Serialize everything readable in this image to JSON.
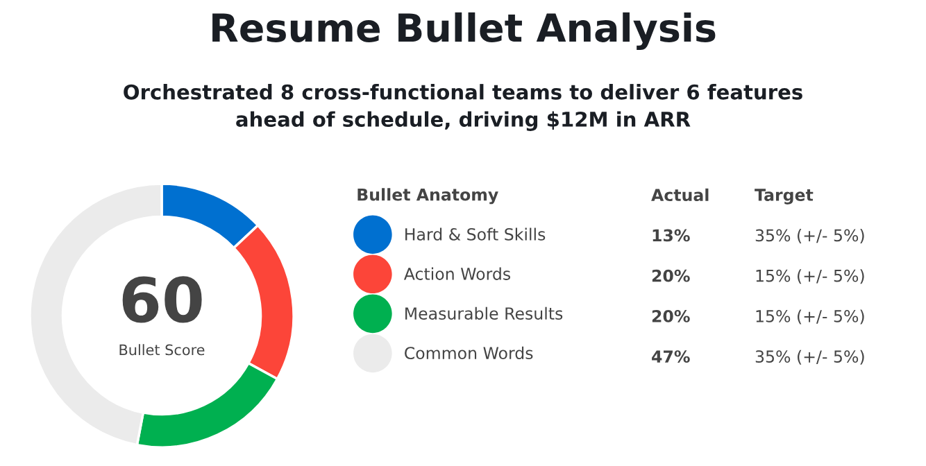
{
  "chart_data": {
    "type": "donut",
    "title": "Resume Bullet Analysis",
    "subtitle": "Orchestrated 8 cross-functional teams to deliver 6 features\nahead of schedule, driving $12M in ARR",
    "legend_title": "Bullet Anatomy",
    "categories": [
      "Hard & Soft Skills",
      "Action Words",
      "Measurable Results",
      "Common Words"
    ],
    "values": [
      13,
      20,
      20,
      47
    ],
    "colors": [
      "#0070d0",
      "#fc4539",
      "#00b050",
      "#ebebeb"
    ],
    "value_labels": [
      "13%",
      "20%",
      "20%",
      "47%"
    ],
    "legend": "right",
    "annotations": [
      "60",
      "Bullet Score",
      "Actual",
      "Target",
      "35% (+/- 5%)",
      "15% (+/- 5%)",
      "15% (+/- 5%)",
      "35% (+/- 5%)"
    ]
  }
}
